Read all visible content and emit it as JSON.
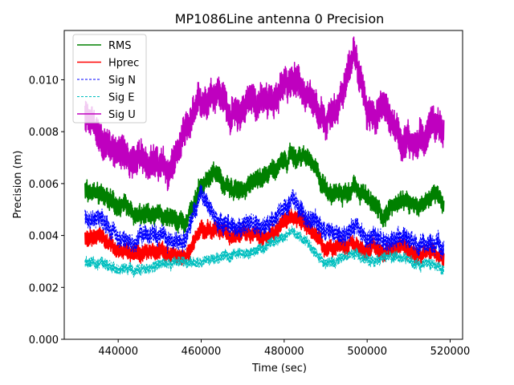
{
  "chart_data": {
    "type": "line",
    "title": "MP1086Line antenna 0 Precision",
    "xlabel": "Time (sec)",
    "ylabel": "Precision (m)",
    "xlim": [
      427000,
      523000
    ],
    "ylim": [
      0.0,
      0.0119
    ],
    "xticks": [
      440000,
      460000,
      480000,
      500000,
      520000
    ],
    "xtick_labels": [
      "440000",
      "460000",
      "480000",
      "500000",
      "520000"
    ],
    "yticks": [
      0.0,
      0.002,
      0.004,
      0.006,
      0.008,
      0.01
    ],
    "ytick_labels": [
      "0.000",
      "0.002",
      "0.004",
      "0.006",
      "0.008",
      "0.010"
    ],
    "legend_position": "upper-left",
    "x": [
      432000,
      436000,
      440000,
      444000,
      448000,
      452000,
      456000,
      460000,
      464000,
      468000,
      472000,
      476000,
      480000,
      482000,
      486000,
      490000,
      494000,
      497000,
      500000,
      504000,
      508000,
      512000,
      516000,
      518500
    ],
    "series": [
      {
        "name": "RMS",
        "color": "#008000",
        "style": "solid",
        "width": 1.5,
        "noise": 0.00035,
        "values": [
          0.0058,
          0.0055,
          0.0052,
          0.0047,
          0.0048,
          0.0047,
          0.0044,
          0.006,
          0.0064,
          0.0057,
          0.0061,
          0.0064,
          0.0068,
          0.0071,
          0.0069,
          0.0058,
          0.0056,
          0.006,
          0.0054,
          0.0048,
          0.0054,
          0.005,
          0.0057,
          0.0053
        ]
      },
      {
        "name": "Hprec",
        "color": "#ff0000",
        "style": "solid",
        "width": 1.5,
        "noise": 0.0003,
        "values": [
          0.0039,
          0.004,
          0.0033,
          0.0034,
          0.0034,
          0.0033,
          0.0031,
          0.0043,
          0.0042,
          0.004,
          0.004,
          0.0041,
          0.0045,
          0.0048,
          0.0043,
          0.0034,
          0.0037,
          0.0036,
          0.0035,
          0.0034,
          0.0036,
          0.0032,
          0.0035,
          0.0032
        ]
      },
      {
        "name": "Sig N",
        "color": "#0000ff",
        "style": "dashed",
        "width": 0.9,
        "noise": 0.00035,
        "values": [
          0.0046,
          0.0046,
          0.004,
          0.0037,
          0.0041,
          0.0038,
          0.0038,
          0.0056,
          0.0045,
          0.0043,
          0.0045,
          0.0042,
          0.0051,
          0.0054,
          0.0047,
          0.0042,
          0.004,
          0.0043,
          0.004,
          0.0038,
          0.0041,
          0.0036,
          0.0037,
          0.0036
        ]
      },
      {
        "name": "Sig E",
        "color": "#00bfbf",
        "style": "dashed",
        "width": 0.9,
        "noise": 0.0002,
        "values": [
          0.003,
          0.0029,
          0.0027,
          0.0027,
          0.0028,
          0.0029,
          0.003,
          0.0029,
          0.0032,
          0.0033,
          0.0033,
          0.0037,
          0.004,
          0.0041,
          0.0037,
          0.0029,
          0.0031,
          0.0033,
          0.003,
          0.0032,
          0.0032,
          0.0029,
          0.0029,
          0.0027
        ]
      },
      {
        "name": "Sig U",
        "color": "#bf00bf",
        "style": "solid",
        "width": 1.5,
        "noise": 0.0006,
        "values": [
          0.0086,
          0.0077,
          0.0073,
          0.0068,
          0.007,
          0.0064,
          0.0078,
          0.0092,
          0.0096,
          0.0085,
          0.0093,
          0.0091,
          0.0097,
          0.0102,
          0.0091,
          0.0083,
          0.0094,
          0.0112,
          0.0086,
          0.009,
          0.0078,
          0.0075,
          0.0085,
          0.008
        ]
      }
    ]
  }
}
